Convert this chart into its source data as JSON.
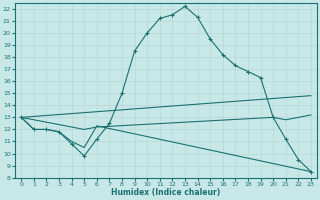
{
  "xlabel": "Humidex (Indice chaleur)",
  "bg_color": "#c8e8e8",
  "line_color": "#1a7070",
  "grid_color": "#b8d8d8",
  "xlim": [
    -0.5,
    23.5
  ],
  "ylim": [
    8,
    22.5
  ],
  "xticks": [
    0,
    1,
    2,
    3,
    4,
    5,
    6,
    7,
    8,
    9,
    10,
    11,
    12,
    13,
    14,
    15,
    16,
    17,
    18,
    19,
    20,
    21,
    22,
    23
  ],
  "yticks": [
    8,
    9,
    10,
    11,
    12,
    13,
    14,
    15,
    16,
    17,
    18,
    19,
    20,
    21,
    22
  ],
  "line1_x": [
    0,
    1,
    2,
    3,
    4,
    5,
    6,
    7,
    8,
    9,
    10,
    11,
    12,
    13,
    14,
    15,
    16,
    17,
    18,
    19,
    20,
    21,
    22,
    23
  ],
  "line1_y": [
    13.0,
    12.0,
    12.0,
    11.8,
    10.8,
    9.8,
    11.2,
    12.5,
    15.0,
    18.5,
    20.0,
    21.2,
    21.5,
    22.2,
    21.3,
    19.5,
    18.2,
    17.3,
    16.8,
    16.3,
    13.0,
    11.2,
    9.5,
    8.5
  ],
  "line2_x": [
    0,
    1,
    2,
    3,
    4,
    5,
    6,
    23
  ],
  "line2_y": [
    13.0,
    12.0,
    12.0,
    11.8,
    11.0,
    10.5,
    12.3,
    8.5
  ],
  "line3_x": [
    0,
    5,
    6,
    20,
    21,
    23
  ],
  "line3_y": [
    13.0,
    12.0,
    12.2,
    13.0,
    12.8,
    13.2
  ],
  "line4_x": [
    0,
    23
  ],
  "line4_y": [
    13.0,
    14.8
  ]
}
